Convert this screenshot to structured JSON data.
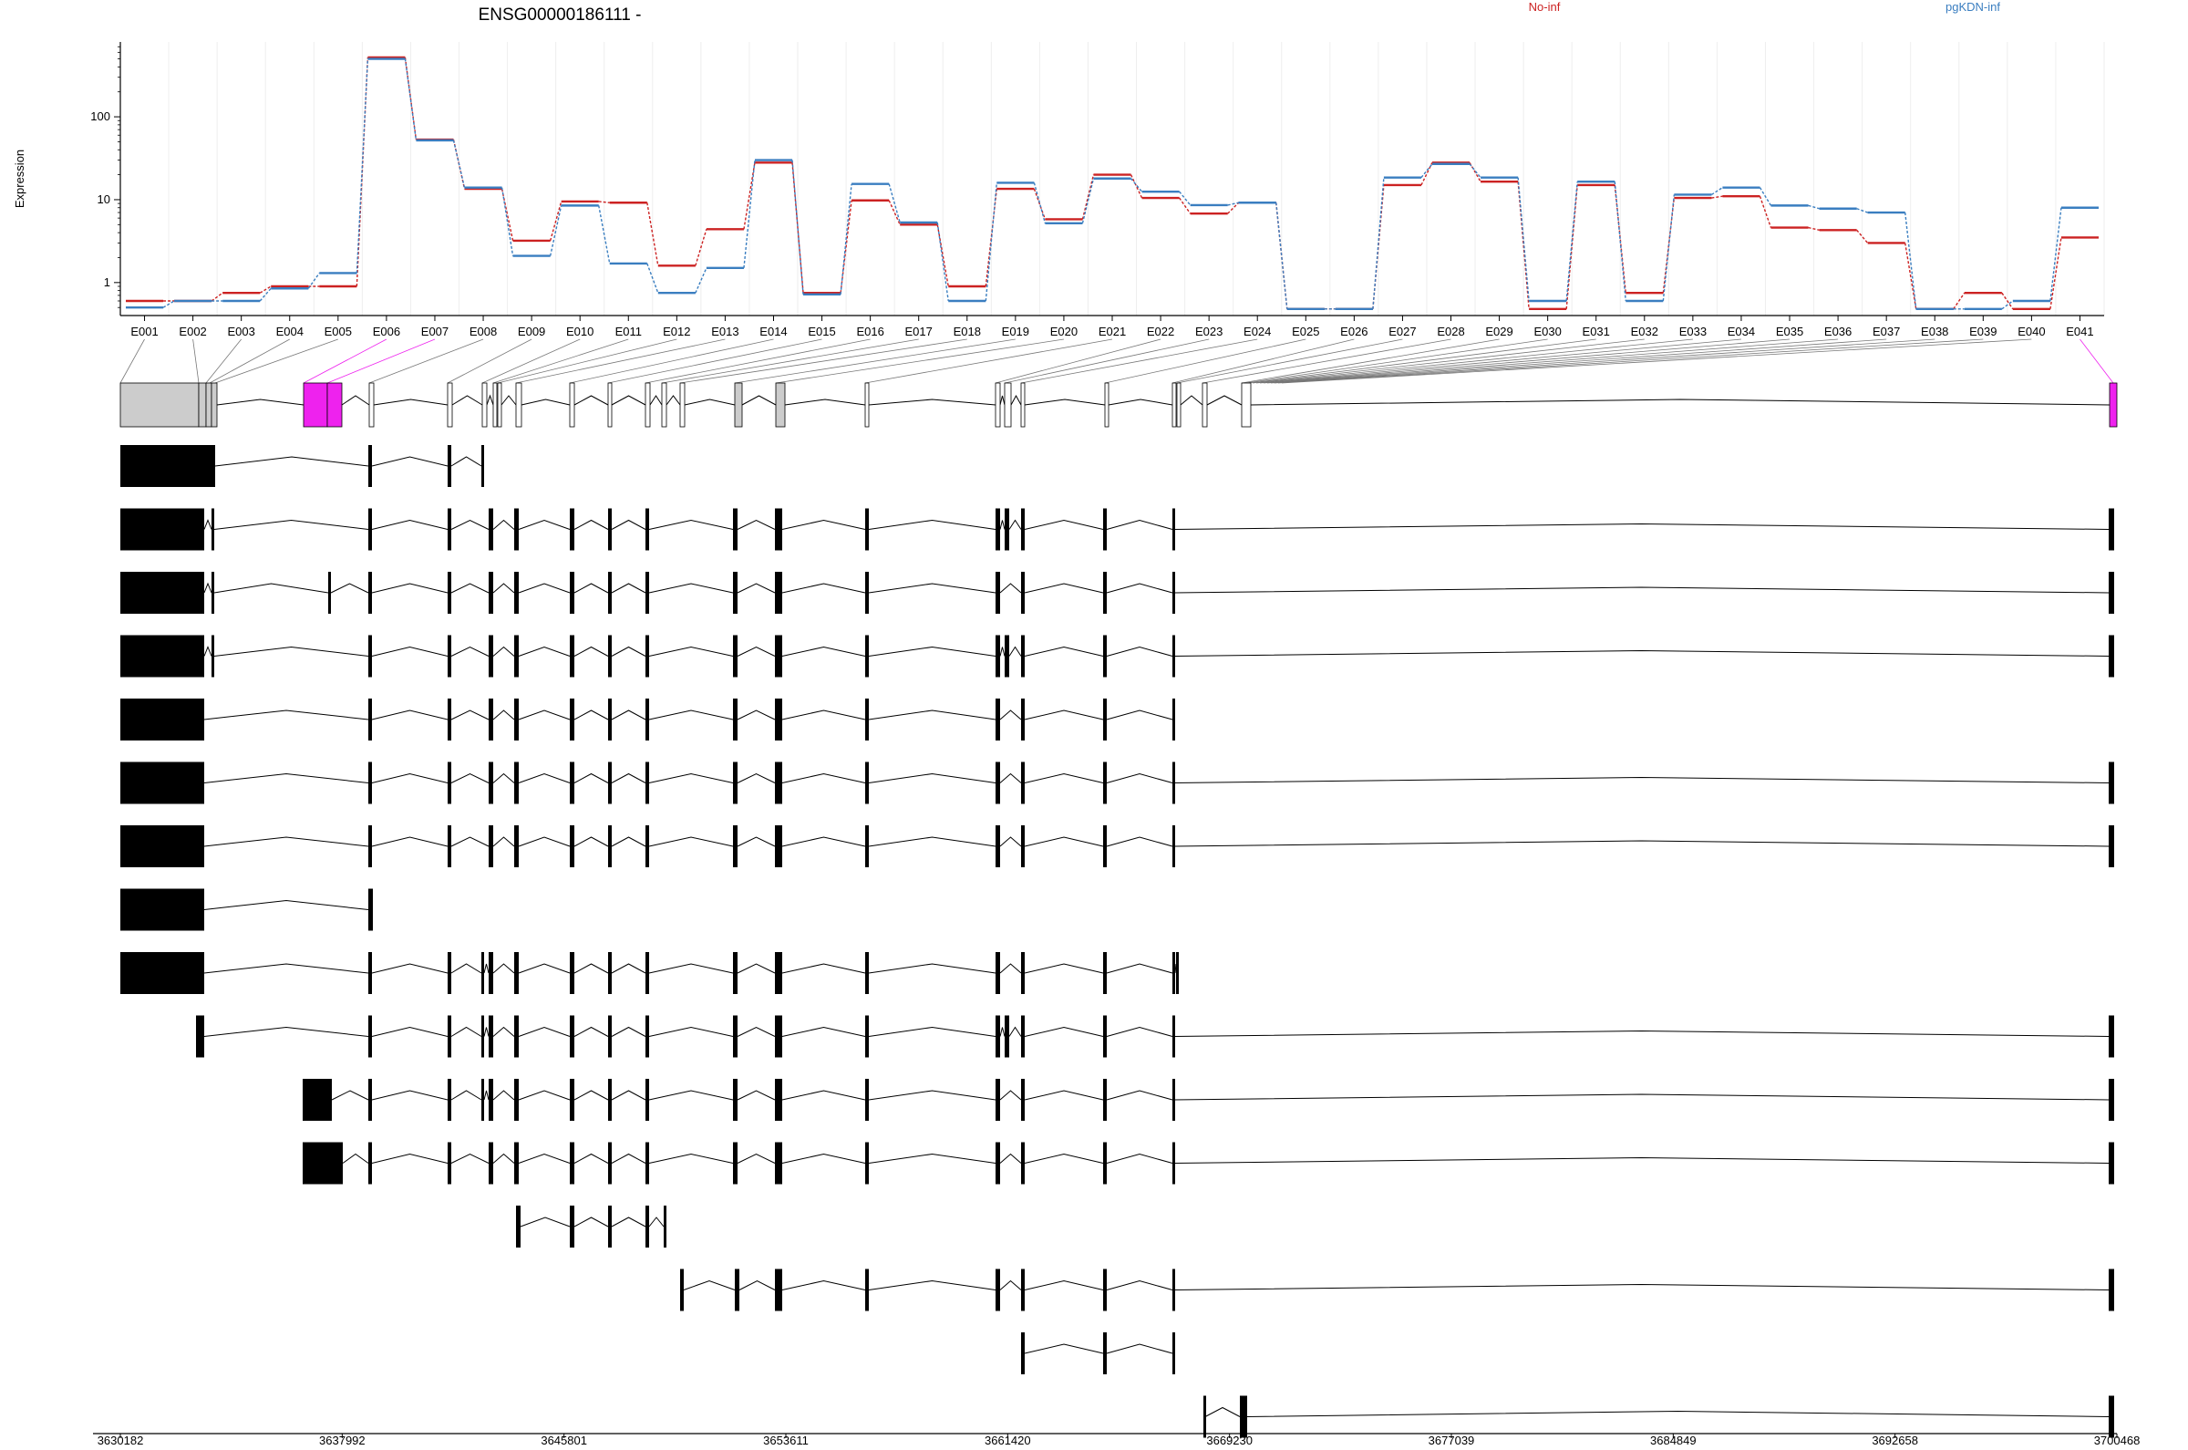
{
  "title": "ENSG00000186111 -",
  "ylabel": "Expression",
  "colors": {
    "no_inf": "#cc2222",
    "pgkdn_inf": "#3a7ec0",
    "highlight": "#ee22ee",
    "exon_fill": "#cccccc",
    "transcript": "#000000"
  },
  "chart_data": {
    "type": "line",
    "title": "ENSG00000186111 -",
    "ylabel": "Expression",
    "xlabel": "",
    "yscale": "log",
    "yticks": [
      "1",
      "10",
      "100"
    ],
    "ytick_values": [
      1,
      10,
      100
    ],
    "ylim": [
      0.4,
      800
    ],
    "categories": [
      "E001",
      "E002",
      "E003",
      "E004",
      "E005",
      "E006",
      "E007",
      "E008",
      "E009",
      "E010",
      "E011",
      "E012",
      "E013",
      "E014",
      "E015",
      "E016",
      "E017",
      "E018",
      "E019",
      "E020",
      "E021",
      "E022",
      "E023",
      "E024",
      "E025",
      "E026",
      "E027",
      "E028",
      "E029",
      "E030",
      "E031",
      "E032",
      "E033",
      "E034",
      "E035",
      "E036",
      "E037",
      "E038",
      "E039",
      "E040",
      "E041"
    ],
    "series": [
      {
        "name": "No-inf",
        "color": "#cc2222",
        "values": [
          0.6,
          0.6,
          0.75,
          0.9,
          0.9,
          520,
          53,
          13.5,
          3.2,
          9.5,
          9.2,
          1.6,
          4.4,
          28,
          0.75,
          9.8,
          5.0,
          0.9,
          13.5,
          5.8,
          20,
          10.5,
          6.8,
          9.2,
          0.48,
          0.48,
          15,
          28,
          16.5,
          0.48,
          15,
          0.75,
          10.5,
          11,
          4.6,
          4.3,
          3.0,
          0.48,
          0.75,
          0.48,
          3.5
        ]
      },
      {
        "name": "pgKDN-inf",
        "color": "#3a7ec0",
        "values": [
          0.5,
          0.6,
          0.6,
          0.85,
          1.3,
          500,
          52,
          14,
          2.1,
          8.5,
          1.7,
          0.75,
          1.5,
          30,
          0.72,
          15.5,
          5.3,
          0.6,
          16,
          5.2,
          18,
          12.5,
          8.6,
          9.2,
          0.48,
          0.48,
          18.5,
          27,
          18.5,
          0.6,
          16.5,
          0.6,
          11.5,
          14,
          8.5,
          7.8,
          7.0,
          0.48,
          0.48,
          0.6,
          8.0
        ]
      }
    ],
    "legend": "top",
    "grid": "vertical"
  },
  "genome_axis": {
    "ticks": [
      "3630182",
      "3637992",
      "3645801",
      "3653611",
      "3661420",
      "3669230",
      "3677039",
      "3684849",
      "3692658",
      "3700468"
    ],
    "range": [
      3630182,
      3700468
    ]
  },
  "gene_model": {
    "highlighted_exons": [
      "E006",
      "E007",
      "E041"
    ]
  },
  "transcripts_count": 16
}
